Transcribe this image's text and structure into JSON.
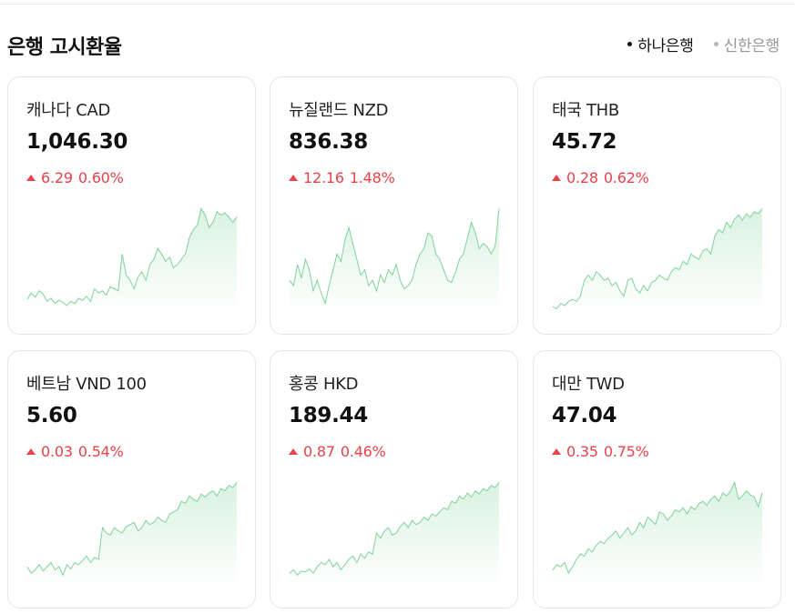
{
  "section": {
    "title": "은행 고시환율",
    "bank_tabs": [
      {
        "label": "하나은행",
        "active": true
      },
      {
        "label": "신한은행",
        "active": false
      }
    ]
  },
  "colors": {
    "up": "#e8424a",
    "spark_line": "#7fd39a",
    "spark_fill_top": "#d9f2e1",
    "spark_fill_bottom": "#ffffff"
  },
  "cards": [
    {
      "name": "캐나다 CAD",
      "rate": "1,046.30",
      "change": "6.29",
      "change_pct": "0.60%",
      "direction": "up",
      "spark": [
        0.12,
        0.18,
        0.14,
        0.2,
        0.17,
        0.1,
        0.13,
        0.08,
        0.11,
        0.09,
        0.06,
        0.1,
        0.08,
        0.13,
        0.11,
        0.15,
        0.1,
        0.22,
        0.18,
        0.2,
        0.16,
        0.24,
        0.22,
        0.2,
        0.55,
        0.35,
        0.3,
        0.22,
        0.33,
        0.38,
        0.3,
        0.45,
        0.5,
        0.6,
        0.55,
        0.48,
        0.52,
        0.42,
        0.45,
        0.5,
        0.55,
        0.7,
        0.78,
        0.82,
        0.98,
        0.92,
        0.8,
        0.85,
        0.95,
        0.92,
        0.94,
        0.9,
        0.85,
        0.9
      ]
    },
    {
      "name": "뉴질랜드 NZD",
      "rate": "836.38",
      "change": "12.16",
      "change_pct": "1.48%",
      "direction": "up",
      "spark": [
        0.3,
        0.25,
        0.45,
        0.32,
        0.5,
        0.4,
        0.2,
        0.3,
        0.18,
        0.08,
        0.25,
        0.4,
        0.55,
        0.48,
        0.68,
        0.8,
        0.65,
        0.5,
        0.35,
        0.4,
        0.25,
        0.3,
        0.2,
        0.35,
        0.28,
        0.4,
        0.35,
        0.45,
        0.3,
        0.22,
        0.25,
        0.3,
        0.45,
        0.55,
        0.6,
        0.75,
        0.72,
        0.55,
        0.5,
        0.4,
        0.3,
        0.28,
        0.38,
        0.5,
        0.55,
        0.7,
        0.85,
        0.75,
        0.6,
        0.65,
        0.62,
        0.55,
        0.62,
        0.98
      ]
    },
    {
      "name": "태국 THB",
      "rate": "45.72",
      "change": "0.28",
      "change_pct": "0.62%",
      "direction": "up",
      "spark": [
        0.05,
        0.03,
        0.08,
        0.06,
        0.1,
        0.12,
        0.1,
        0.15,
        0.3,
        0.35,
        0.3,
        0.38,
        0.35,
        0.3,
        0.32,
        0.25,
        0.28,
        0.2,
        0.15,
        0.3,
        0.32,
        0.22,
        0.18,
        0.25,
        0.2,
        0.28,
        0.3,
        0.35,
        0.32,
        0.3,
        0.38,
        0.42,
        0.4,
        0.48,
        0.45,
        0.55,
        0.52,
        0.5,
        0.58,
        0.6,
        0.55,
        0.72,
        0.78,
        0.75,
        0.85,
        0.8,
        0.88,
        0.92,
        0.87,
        0.93,
        0.9,
        0.95,
        0.93,
        0.98
      ]
    },
    {
      "name": "베트남 VND 100",
      "rate": "5.60",
      "change": "0.03",
      "change_pct": "0.54%",
      "direction": "up",
      "spark": [
        0.18,
        0.12,
        0.15,
        0.2,
        0.14,
        0.18,
        0.22,
        0.15,
        0.18,
        0.1,
        0.2,
        0.16,
        0.22,
        0.2,
        0.24,
        0.28,
        0.22,
        0.27,
        0.25,
        0.55,
        0.5,
        0.48,
        0.55,
        0.52,
        0.5,
        0.56,
        0.58,
        0.6,
        0.52,
        0.55,
        0.62,
        0.58,
        0.6,
        0.65,
        0.62,
        0.6,
        0.68,
        0.7,
        0.72,
        0.8,
        0.78,
        0.85,
        0.82,
        0.8,
        0.87,
        0.84,
        0.88,
        0.9,
        0.85,
        0.92,
        0.9,
        0.95,
        0.93,
        0.98
      ]
    },
    {
      "name": "홍콩 HKD",
      "rate": "189.44",
      "change": "0.87",
      "change_pct": "0.46%",
      "direction": "up",
      "spark": [
        0.12,
        0.15,
        0.1,
        0.14,
        0.13,
        0.16,
        0.12,
        0.18,
        0.22,
        0.2,
        0.25,
        0.18,
        0.22,
        0.15,
        0.2,
        0.25,
        0.28,
        0.22,
        0.3,
        0.26,
        0.32,
        0.3,
        0.5,
        0.45,
        0.52,
        0.55,
        0.48,
        0.5,
        0.56,
        0.6,
        0.55,
        0.62,
        0.58,
        0.6,
        0.65,
        0.62,
        0.68,
        0.66,
        0.7,
        0.74,
        0.72,
        0.8,
        0.78,
        0.85,
        0.82,
        0.88,
        0.84,
        0.9,
        0.87,
        0.92,
        0.9,
        0.95,
        0.93,
        0.98
      ]
    },
    {
      "name": "대만 TWD",
      "rate": "47.04",
      "change": "0.35",
      "change_pct": "0.75%",
      "direction": "up",
      "spark": [
        0.15,
        0.2,
        0.18,
        0.22,
        0.12,
        0.18,
        0.25,
        0.3,
        0.28,
        0.35,
        0.32,
        0.38,
        0.42,
        0.4,
        0.45,
        0.48,
        0.52,
        0.45,
        0.5,
        0.55,
        0.48,
        0.52,
        0.6,
        0.55,
        0.65,
        0.62,
        0.58,
        0.7,
        0.68,
        0.62,
        0.66,
        0.72,
        0.7,
        0.74,
        0.68,
        0.75,
        0.72,
        0.78,
        0.8,
        0.76,
        0.82,
        0.85,
        0.8,
        0.88,
        0.85,
        0.9,
        0.98,
        0.82,
        0.85,
        0.9,
        0.86,
        0.84,
        0.75,
        0.88
      ]
    }
  ]
}
